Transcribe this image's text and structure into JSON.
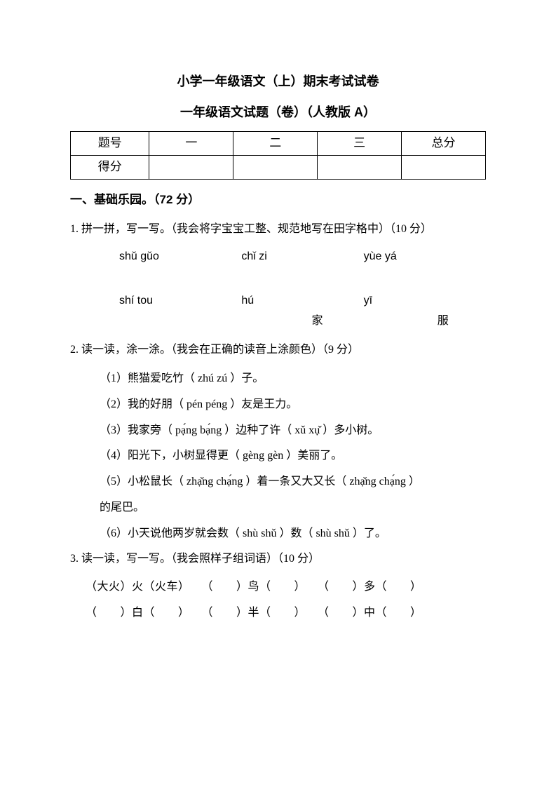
{
  "title": "小学一年级语文（上）期末考试试卷",
  "subtitle": "一年级语文试题（卷）（人教版 A）",
  "score_table": {
    "row1": {
      "label": "题号",
      "c1": "一",
      "c2": "二",
      "c3": "三",
      "c4": "总分"
    },
    "row2": {
      "label": "得分",
      "c1": "",
      "c2": "",
      "c3": "",
      "c4": ""
    }
  },
  "section1": {
    "heading": "一、基础乐园。（72 分）"
  },
  "q1": {
    "text": "1. 拼一拼，写一写。（我会将字宝宝工整、规范地写在田字格中）（10 分）",
    "row1": {
      "p1": "shǔ gǔo",
      "p2": "chǐ  zi",
      "p3": "yùe  yá"
    },
    "row2": {
      "p1": "shí  tou",
      "p2": "hú",
      "p3": "yī"
    },
    "hanzi": {
      "h2": "家",
      "h3": "服"
    }
  },
  "q2": {
    "text": "2.  读一读，涂一涂。（我会在正确的读音上涂颜色）（9 分）",
    "s1": "（1）熊猫爱吃竹（ zhú  zú ）子。",
    "s2": "（2）我的好朋（ pén  péng ）友是王力。",
    "s3": "（3）我家旁（ pạ́ng bạ́ng ）边种了许（ xǔ xụ̌ ）多小树。",
    "s4": "（4）阳光下，小树显得更（ gèng gèn ）美丽了。",
    "s5": "（5）小松鼠长（ zhạ̌ng chạ́ng ）着一条又大又长（ zhạ̌ng chạ́ng ）",
    "s5b": "的尾巴。",
    "s6": "（6）小天说他两岁就会数（ shù shǔ ）数（ shù shǔ ）了。"
  },
  "q3": {
    "text": "3.  读一读，写一写。（我会照样子组词语）（10 分）",
    "line1": "（大火）火（火车）　　（　　）鸟（　　）　　（　　）多（　　）",
    "line2": "（　　）白（　　）　　（　　）半（　　）　　（　　）中（　　）"
  }
}
